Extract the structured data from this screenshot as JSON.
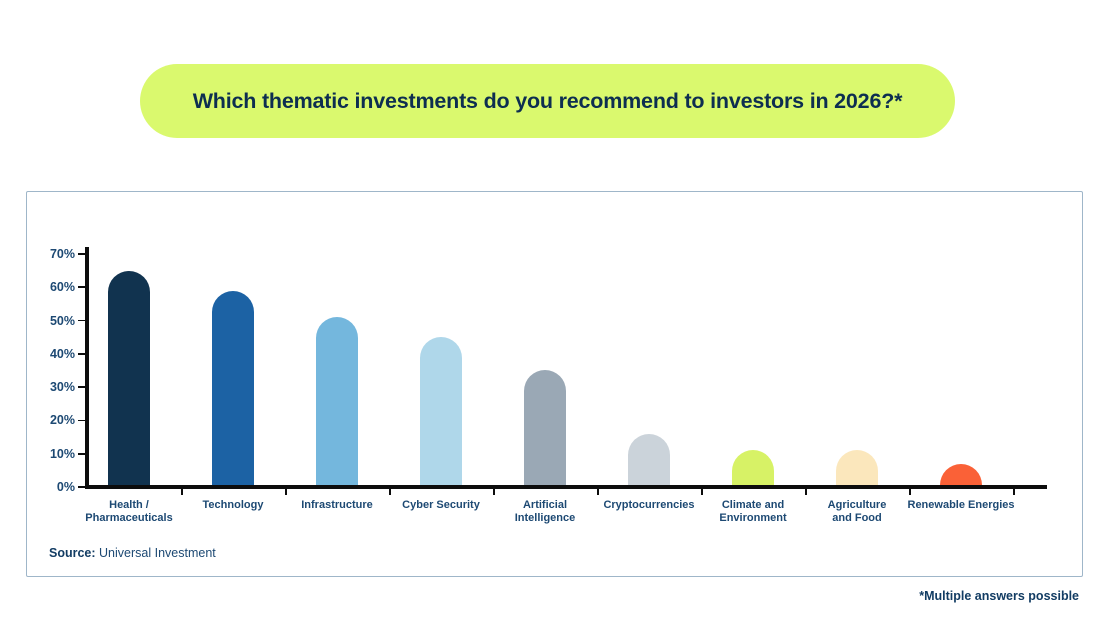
{
  "title": {
    "text": "Which thematic investments do you recommend to investors in 2026?*"
  },
  "chart_data": {
    "type": "bar",
    "title": "Which thematic investments do you recommend to investors in 2026?*",
    "categories": [
      "Health /\nPharmaceuticals",
      "Technology",
      "Infrastructure",
      "Cyber Security",
      "Artificial\nIntelligence",
      "Cryptocurrencies",
      "Climate and\nEnvironment",
      "Agriculture\nand Food",
      "Renewable Energies"
    ],
    "values": [
      65,
      59,
      51,
      45,
      35,
      16,
      11,
      11,
      7
    ],
    "unit": "%",
    "colors": [
      "#11334F",
      "#1C62A4",
      "#74B7DD",
      "#AFD7EA",
      "#9AA8B5",
      "#CBD3DA",
      "#D7F266",
      "#FBE7BC",
      "#FA6137"
    ],
    "y_ticks": [
      "70%",
      "60%",
      "50%",
      "40%",
      "30%",
      "20%",
      "10%",
      "0%"
    ],
    "ylim": [
      0,
      70
    ],
    "grid": false,
    "legend": false,
    "bar_shape": "rounded-top"
  },
  "source": {
    "label": "Source:",
    "text": "Universal Investment"
  },
  "footnote": {
    "text": "*Multiple answers possible"
  },
  "colors": {
    "accent_lime": "#DAF96E",
    "title_navy": "#0D2E50",
    "label_navy": "#1D4973",
    "axis_black": "#0d0d0d",
    "card_border": "#9FB6C9",
    "background": "#FFFFFF"
  }
}
